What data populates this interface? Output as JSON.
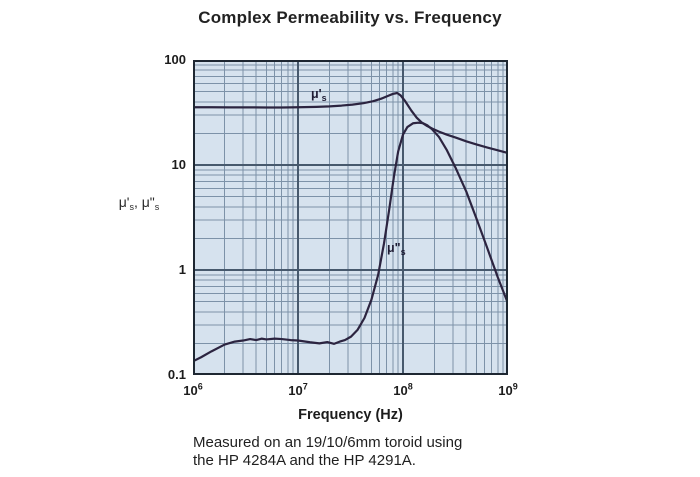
{
  "title": "Complex Permeability vs. Frequency",
  "xlabel": "Frequency (Hz)",
  "ylabel_parts": {
    "m1": "μ'",
    "s1": "s",
    "sep": ", ",
    "m2": "μ\"",
    "s2": "s"
  },
  "curve_labels": {
    "mu_prime": {
      "base": "μ'",
      "sub": "s"
    },
    "mu_double": {
      "base": "μ\"",
      "sub": "s"
    }
  },
  "caption": {
    "line1": "Measured on an 19/10/6mm toroid using",
    "line2": "the HP 4284A and the HP 4291A."
  },
  "colors": {
    "plot_background": "#d6e2ee",
    "grid_minor": "#7d92a8",
    "grid_major": "#47596d",
    "plot_border": "#1e2732",
    "curve": "#2c2440",
    "text": "#1c1c1c"
  },
  "chart_data": {
    "type": "line",
    "title": "Complex Permeability vs. Frequency",
    "xlabel": "Frequency (Hz)",
    "ylabel": "μ's, μ\"s",
    "x_scale": "log",
    "y_scale": "log",
    "xlim": [
      1000000.0,
      1000000000.0
    ],
    "ylim": [
      0.1,
      100
    ],
    "grid": true,
    "x_ticks": [
      {
        "base": "10",
        "exp": "6"
      },
      {
        "base": "10",
        "exp": "7"
      },
      {
        "base": "10",
        "exp": "8"
      },
      {
        "base": "10",
        "exp": "9"
      }
    ],
    "y_ticks": [
      "100",
      "10",
      "1",
      "0.1"
    ],
    "series": [
      {
        "name": "μ's",
        "x": [
          1000000.0,
          1500000.0,
          2200000.0,
          3300000.0,
          5000000.0,
          7000000.0,
          10000000.0,
          15000000.0,
          20000000.0,
          26000000.0,
          33000000.0,
          42000000.0,
          52000000.0,
          62000000.0,
          72000000.0,
          80000000.0,
          88000000.0,
          95000000.0,
          105000000.0,
          120000000.0,
          135000000.0,
          150000000.0,
          170000000.0,
          190000000.0,
          220000000.0,
          260000000.0,
          320000000.0,
          400000000.0,
          500000000.0,
          630000000.0,
          800000000.0,
          1000000000.0
        ],
        "y": [
          35.5,
          35.5,
          35.4,
          35.4,
          35.3,
          35.3,
          35.5,
          35.8,
          36.2,
          36.8,
          37.6,
          38.8,
          40.5,
          42.8,
          45.5,
          47.5,
          48.5,
          46.0,
          40.5,
          33.0,
          28.2,
          25.5,
          23.5,
          22.2,
          20.8,
          19.5,
          18.2,
          16.8,
          15.7,
          14.7,
          13.8,
          13.0
        ]
      },
      {
        "name": "μ\"s",
        "x": [
          1000000.0,
          1200000.0,
          1500000.0,
          2000000.0,
          2500000.0,
          3000000.0,
          3500000.0,
          4000000.0,
          4500000.0,
          5000000.0,
          6000000.0,
          7000000.0,
          8500000.0,
          10000000.0,
          13000000.0,
          16000000.0,
          19000000.0,
          22000000.0,
          25000000.0,
          28000000.0,
          32000000.0,
          37000000.0,
          43000000.0,
          50000000.0,
          58000000.0,
          66000000.0,
          74000000.0,
          82000000.0,
          90000000.0,
          100000000.0,
          110000000.0,
          125000000.0,
          140000000.0,
          155000000.0,
          170000000.0,
          190000000.0,
          220000000.0,
          260000000.0,
          320000000.0,
          400000000.0,
          500000000.0,
          630000000.0,
          800000000.0,
          1000000000.0
        ],
        "y": [
          0.135,
          0.148,
          0.168,
          0.195,
          0.208,
          0.213,
          0.22,
          0.215,
          0.222,
          0.218,
          0.222,
          0.22,
          0.215,
          0.213,
          0.205,
          0.2,
          0.206,
          0.198,
          0.208,
          0.215,
          0.232,
          0.27,
          0.35,
          0.52,
          0.9,
          1.8,
          3.8,
          7.8,
          13.5,
          19.5,
          23.0,
          25.0,
          25.3,
          25.0,
          23.9,
          21.8,
          18.5,
          14.0,
          9.2,
          5.6,
          3.1,
          1.65,
          0.85,
          0.48
        ]
      }
    ]
  }
}
